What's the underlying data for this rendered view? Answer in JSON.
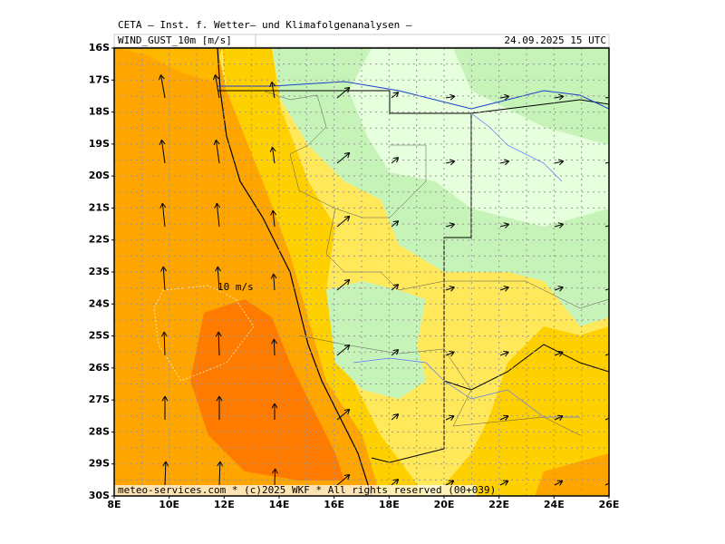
{
  "header": {
    "title": "CETA — Inst. f. Wetter— und Klimafolgenanalysen —",
    "field": "WIND_GUST_10m [m/s]",
    "date": "24.09.2025 15 UTC"
  },
  "axes": {
    "lat_labels": [
      "16S",
      "17S",
      "18S",
      "19S",
      "20S",
      "21S",
      "22S",
      "23S",
      "24S",
      "25S",
      "26S",
      "27S",
      "28S",
      "29S",
      "30S"
    ],
    "lon_labels": [
      "8E",
      "10E",
      "12E",
      "14E",
      "16E",
      "18E",
      "20E",
      "22E",
      "24E",
      "26E"
    ]
  },
  "annotation": "10 m/s",
  "footer": "meteo-services.com * (c)2025 WKF * All rights reserved (00+039)"
}
